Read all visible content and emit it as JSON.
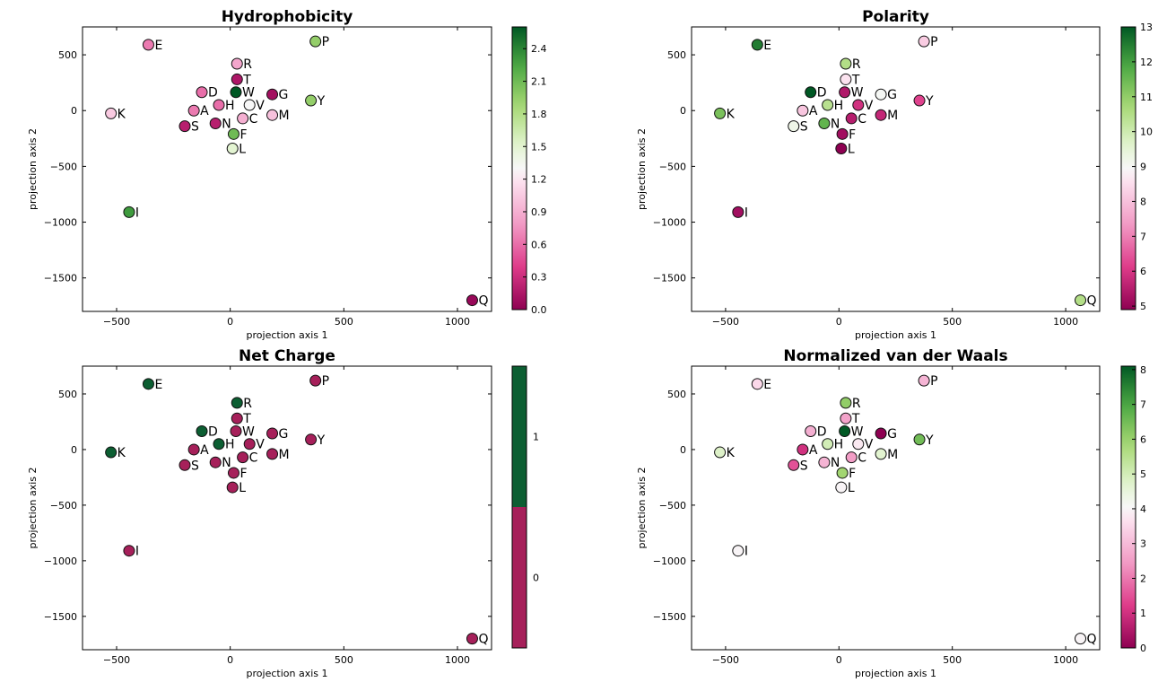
{
  "chart_data": [
    {
      "type": "scatter",
      "title": "Hydrophobicity",
      "xlabel": "projection axis 1",
      "ylabel": "projection axis 2",
      "xlim": [
        -650,
        1150
      ],
      "ylim": [
        -1800,
        750
      ],
      "xticks": [
        -500,
        0,
        500,
        1000
      ],
      "yticks": [
        -1500,
        -1000,
        -500,
        0,
        500
      ],
      "colorbar": {
        "min": 0.0,
        "max": 2.6,
        "ticks": [
          "0.0",
          "0.3",
          "0.6",
          "0.9",
          "1.2",
          "1.5",
          "1.8",
          "2.1",
          "2.4"
        ],
        "discrete": false
      },
      "points": [
        {
          "label": "E",
          "x": -360,
          "y": 590,
          "v": 0.65
        },
        {
          "label": "P",
          "x": 375,
          "y": 620,
          "v": 1.95
        },
        {
          "label": "R",
          "x": 30,
          "y": 420,
          "v": 0.85
        },
        {
          "label": "T",
          "x": 30,
          "y": 280,
          "v": 0.15
        },
        {
          "label": "D",
          "x": -125,
          "y": 165,
          "v": 0.6
        },
        {
          "label": "W",
          "x": 25,
          "y": 165,
          "v": 2.6
        },
        {
          "label": "G",
          "x": 185,
          "y": 145,
          "v": 0.1
        },
        {
          "label": "Y",
          "x": 355,
          "y": 90,
          "v": 1.95
        },
        {
          "label": "H",
          "x": -50,
          "y": 50,
          "v": 0.6
        },
        {
          "label": "V",
          "x": 85,
          "y": 50,
          "v": 1.3
        },
        {
          "label": "A",
          "x": -160,
          "y": 0,
          "v": 0.65
        },
        {
          "label": "K",
          "x": -525,
          "y": -25,
          "v": 1.05
        },
        {
          "label": "C",
          "x": 55,
          "y": -70,
          "v": 0.9
        },
        {
          "label": "M",
          "x": 185,
          "y": -40,
          "v": 1.0
        },
        {
          "label": "N",
          "x": -65,
          "y": -115,
          "v": 0.2
        },
        {
          "label": "S",
          "x": -200,
          "y": -140,
          "v": 0.2
        },
        {
          "label": "F",
          "x": 15,
          "y": -210,
          "v": 2.1
        },
        {
          "label": "L",
          "x": 10,
          "y": -340,
          "v": 1.5
        },
        {
          "label": "I",
          "x": -445,
          "y": -910,
          "v": 2.3
        },
        {
          "label": "Q",
          "x": 1065,
          "y": -1700,
          "v": 0.05
        }
      ]
    },
    {
      "type": "scatter",
      "title": "Polarity",
      "xlabel": "projection axis 1",
      "ylabel": "projection axis 2",
      "xlim": [
        -650,
        1150
      ],
      "ylim": [
        -1800,
        750
      ],
      "xticks": [
        -500,
        0,
        500,
        1000
      ],
      "yticks": [
        -1500,
        -1000,
        -500,
        0,
        500
      ],
      "colorbar": {
        "min": 4.9,
        "max": 13.0,
        "ticks": [
          "5",
          "6",
          "7",
          "8",
          "9",
          "10",
          "11",
          "12",
          "13"
        ],
        "discrete": false
      },
      "points": [
        {
          "label": "E",
          "x": -360,
          "y": 590,
          "v": 12.5
        },
        {
          "label": "P",
          "x": 375,
          "y": 620,
          "v": 8.2
        },
        {
          "label": "R",
          "x": 30,
          "y": 420,
          "v": 10.5
        },
        {
          "label": "T",
          "x": 30,
          "y": 280,
          "v": 8.6
        },
        {
          "label": "D",
          "x": -125,
          "y": 165,
          "v": 13.0
        },
        {
          "label": "W",
          "x": 25,
          "y": 165,
          "v": 5.4
        },
        {
          "label": "G",
          "x": 185,
          "y": 145,
          "v": 9.0
        },
        {
          "label": "Y",
          "x": 355,
          "y": 90,
          "v": 6.2
        },
        {
          "label": "H",
          "x": -50,
          "y": 50,
          "v": 10.4
        },
        {
          "label": "V",
          "x": 85,
          "y": 50,
          "v": 5.9
        },
        {
          "label": "A",
          "x": -160,
          "y": 0,
          "v": 8.1
        },
        {
          "label": "K",
          "x": -525,
          "y": -25,
          "v": 11.3
        },
        {
          "label": "C",
          "x": 55,
          "y": -70,
          "v": 5.5
        },
        {
          "label": "M",
          "x": 185,
          "y": -40,
          "v": 5.7
        },
        {
          "label": "N",
          "x": -65,
          "y": -115,
          "v": 11.6
        },
        {
          "label": "S",
          "x": -200,
          "y": -140,
          "v": 9.2
        },
        {
          "label": "F",
          "x": 15,
          "y": -210,
          "v": 5.2
        },
        {
          "label": "L",
          "x": 10,
          "y": -340,
          "v": 4.9
        },
        {
          "label": "I",
          "x": -445,
          "y": -910,
          "v": 5.2
        },
        {
          "label": "Q",
          "x": 1065,
          "y": -1700,
          "v": 10.5
        }
      ]
    },
    {
      "type": "scatter",
      "title": "Net Charge",
      "xlabel": "projection axis 1",
      "ylabel": "projection axis 2",
      "xlim": [
        -650,
        1150
      ],
      "ylim": [
        -1800,
        750
      ],
      "xticks": [
        -500,
        0,
        500,
        1000
      ],
      "yticks": [
        -1500,
        -1000,
        -500,
        0,
        500
      ],
      "colorbar": {
        "min": 0,
        "max": 1,
        "ticks": [
          "0",
          "1"
        ],
        "discrete": true,
        "colors": [
          "#a6205a",
          "#0c5e32"
        ]
      },
      "points": [
        {
          "label": "E",
          "x": -360,
          "y": 590,
          "v": 1
        },
        {
          "label": "P",
          "x": 375,
          "y": 620,
          "v": 0
        },
        {
          "label": "R",
          "x": 30,
          "y": 420,
          "v": 1
        },
        {
          "label": "T",
          "x": 30,
          "y": 280,
          "v": 0
        },
        {
          "label": "D",
          "x": -125,
          "y": 165,
          "v": 1
        },
        {
          "label": "W",
          "x": 25,
          "y": 165,
          "v": 0
        },
        {
          "label": "G",
          "x": 185,
          "y": 145,
          "v": 0
        },
        {
          "label": "Y",
          "x": 355,
          "y": 90,
          "v": 0
        },
        {
          "label": "H",
          "x": -50,
          "y": 50,
          "v": 1
        },
        {
          "label": "V",
          "x": 85,
          "y": 50,
          "v": 0
        },
        {
          "label": "A",
          "x": -160,
          "y": 0,
          "v": 0
        },
        {
          "label": "K",
          "x": -525,
          "y": -25,
          "v": 1
        },
        {
          "label": "C",
          "x": 55,
          "y": -70,
          "v": 0
        },
        {
          "label": "M",
          "x": 185,
          "y": -40,
          "v": 0
        },
        {
          "label": "N",
          "x": -65,
          "y": -115,
          "v": 0
        },
        {
          "label": "S",
          "x": -200,
          "y": -140,
          "v": 0
        },
        {
          "label": "F",
          "x": 15,
          "y": -210,
          "v": 0
        },
        {
          "label": "L",
          "x": 10,
          "y": -340,
          "v": 0
        },
        {
          "label": "I",
          "x": -445,
          "y": -910,
          "v": 0
        },
        {
          "label": "Q",
          "x": 1065,
          "y": -1700,
          "v": 0
        }
      ]
    },
    {
      "type": "scatter",
      "title": "Normalized van der Waals",
      "xlabel": "projection axis 1",
      "ylabel": "projection axis 2",
      "xlim": [
        -650,
        1150
      ],
      "ylim": [
        -1800,
        750
      ],
      "xticks": [
        -500,
        0,
        500,
        1000
      ],
      "yticks": [
        -1500,
        -1000,
        -500,
        0,
        500
      ],
      "colorbar": {
        "min": 0,
        "max": 8.1,
        "ticks": [
          "0",
          "1",
          "2",
          "3",
          "4",
          "5",
          "6",
          "7",
          "8"
        ],
        "discrete": false
      },
      "points": [
        {
          "label": "E",
          "x": -360,
          "y": 590,
          "v": 3.5
        },
        {
          "label": "P",
          "x": 375,
          "y": 620,
          "v": 2.9
        },
        {
          "label": "R",
          "x": 30,
          "y": 420,
          "v": 6.1
        },
        {
          "label": "T",
          "x": 30,
          "y": 280,
          "v": 2.6
        },
        {
          "label": "D",
          "x": -125,
          "y": 165,
          "v": 2.8
        },
        {
          "label": "W",
          "x": 25,
          "y": 165,
          "v": 8.1
        },
        {
          "label": "G",
          "x": 185,
          "y": 145,
          "v": 0.0
        },
        {
          "label": "Y",
          "x": 355,
          "y": 90,
          "v": 6.5
        },
        {
          "label": "H",
          "x": -50,
          "y": 50,
          "v": 5.0
        },
        {
          "label": "V",
          "x": 85,
          "y": 50,
          "v": 3.8
        },
        {
          "label": "A",
          "x": -160,
          "y": 0,
          "v": 1.0
        },
        {
          "label": "K",
          "x": -525,
          "y": -25,
          "v": 4.8
        },
        {
          "label": "C",
          "x": 55,
          "y": -70,
          "v": 2.5
        },
        {
          "label": "M",
          "x": 185,
          "y": -40,
          "v": 4.7
        },
        {
          "label": "N",
          "x": -65,
          "y": -115,
          "v": 2.9
        },
        {
          "label": "S",
          "x": -200,
          "y": -140,
          "v": 1.5
        },
        {
          "label": "F",
          "x": 15,
          "y": -210,
          "v": 5.9
        },
        {
          "label": "L",
          "x": 10,
          "y": -340,
          "v": 4.0
        },
        {
          "label": "I",
          "x": -445,
          "y": -910,
          "v": 4.0
        },
        {
          "label": "Q",
          "x": 1065,
          "y": -1700,
          "v": 4.0
        }
      ]
    }
  ]
}
